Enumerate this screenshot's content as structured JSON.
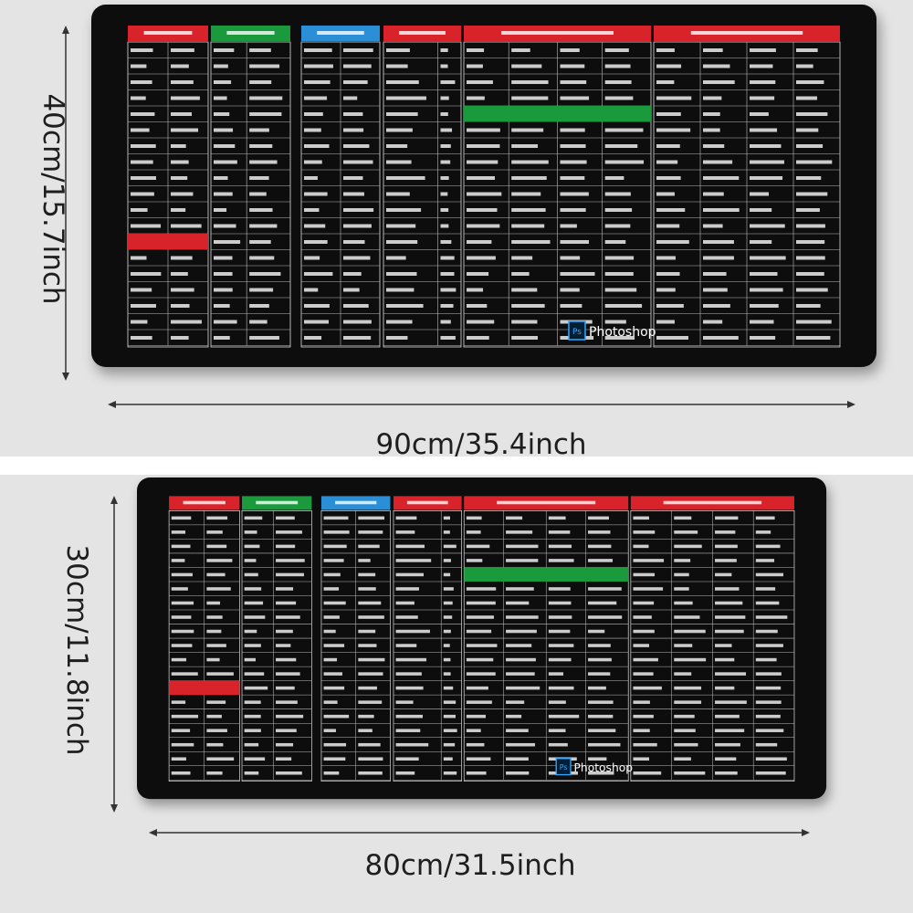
{
  "large_mat": {
    "height_label": "40cm/15.7inch",
    "width_label": "90cm/35.4inch"
  },
  "small_mat": {
    "height_label": "30cm/11.8inch",
    "width_label": "80cm/31.5inch"
  },
  "logo": {
    "icon": "Ps",
    "name": "Photoshop"
  }
}
